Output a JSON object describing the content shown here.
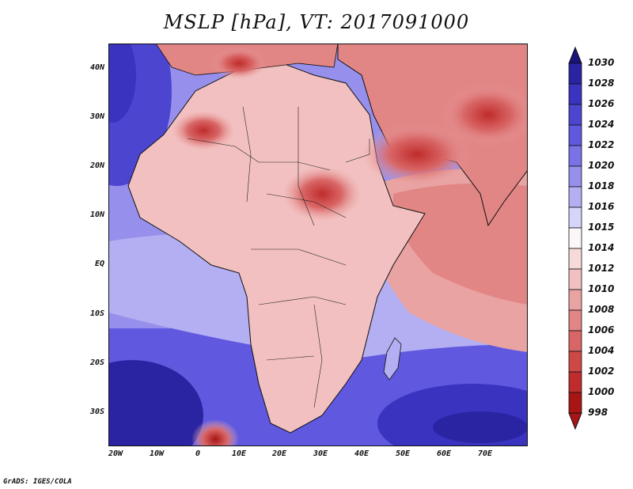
{
  "title": "MSLP [hPa], VT: 2017091000",
  "credit": "GrADS: IGES/COLA",
  "map": {
    "lat_labels": [
      "40N",
      "30N",
      "20N",
      "10N",
      "EQ",
      "10S",
      "20S",
      "30S"
    ],
    "lon_labels": [
      "20W",
      "10W",
      "0",
      "10E",
      "20E",
      "30E",
      "40E",
      "50E",
      "60E",
      "70E"
    ],
    "lon_range": [
      -21,
      80
    ],
    "lat_range": [
      -37,
      45
    ]
  },
  "colorbar": {
    "levels": [
      "1030",
      "1028",
      "1026",
      "1024",
      "1022",
      "1020",
      "1018",
      "1016",
      "1015",
      "1014",
      "1012",
      "1010",
      "1008",
      "1006",
      "1004",
      "1002",
      "1000",
      "998"
    ],
    "colors": [
      "#18127a",
      "#2a24a3",
      "#3a33c0",
      "#4c45d0",
      "#6058de",
      "#7a72e6",
      "#9690ec",
      "#b3aff2",
      "#d6d4f8",
      "#fbf7f7",
      "#f7dada",
      "#f2c0c0",
      "#eaa3a3",
      "#e28585",
      "#d96666",
      "#ce4848",
      "#c02c2c",
      "#a81515"
    ]
  }
}
